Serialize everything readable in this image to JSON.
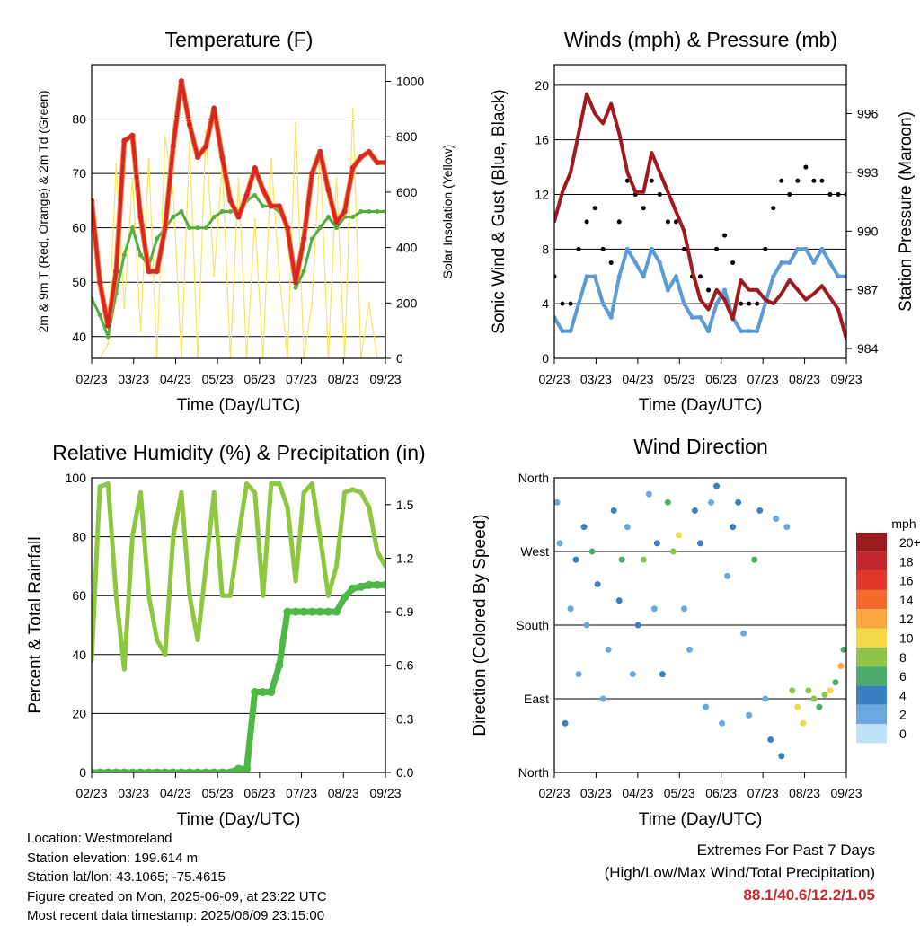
{
  "x_ticks": [
    "02/23",
    "03/23",
    "04/23",
    "05/23",
    "06/23",
    "07/23",
    "08/23",
    "09/23"
  ],
  "footer": {
    "location": "Location: Westmoreland",
    "elevation": "Station elevation: 199.614 m",
    "latlon": "Station lat/lon: 43.1065; -75.4615",
    "created": "Figure created on Mon, 2025-06-09, at 23:22 UTC",
    "recent": "Most recent data timestamp: 2025/06/09 23:15:00"
  },
  "extremes": {
    "title": "Extremes For Past 7 Days",
    "subtitle": "(High/Low/Max Wind/Total Precipitation)",
    "values": "88.1/40.6/12.2/1.05"
  },
  "colors": {
    "temp_red": "#d62728",
    "temp_orange": "#f5862b",
    "dewpoint_green": "#55ad3f",
    "solar_yellow": "#f9e35f",
    "wind_blue": "#5b9bd5",
    "gust_black": "#000000",
    "pressure_maroon": "#9e1a1e",
    "rh_lightgreen": "#8dc63f",
    "precip_green": "#4db843"
  },
  "chart_data": [
    {
      "id": "temperature",
      "type": "line",
      "title": "Temperature (F)",
      "xlabel": "Time (Day/UTC)",
      "ylabel": "2m & 9m T (Red, Orange) & 2m Td (Green)",
      "ylabel_right": "Solar Insolation (Yellow)",
      "ylim": [
        36,
        90
      ],
      "ylim_right": [
        0,
        1060
      ],
      "yticks": [
        40,
        50,
        60,
        70,
        80
      ],
      "yticks_right": [
        0,
        200,
        400,
        600,
        800,
        1000
      ],
      "x": [
        0,
        3,
        6,
        9,
        12,
        15,
        18,
        21,
        24,
        27,
        30,
        33,
        36,
        39,
        42,
        45,
        48,
        51,
        54,
        57,
        60,
        63,
        66,
        69,
        72,
        75,
        78,
        81,
        84,
        87,
        90,
        93,
        96,
        99,
        102,
        105,
        108
      ],
      "series": [
        {
          "name": "2m T",
          "values": [
            65,
            50,
            42,
            52,
            76,
            77,
            62,
            52,
            52,
            60,
            75,
            87,
            79,
            73,
            75,
            82,
            73,
            65,
            62,
            66,
            71,
            67,
            64,
            64,
            60,
            50,
            58,
            70,
            74,
            67,
            61,
            63,
            71,
            73,
            74,
            72,
            72
          ]
        },
        {
          "name": "2m Td",
          "values": [
            47,
            44,
            40,
            48,
            55,
            60,
            55,
            53,
            58,
            60,
            62,
            63,
            60,
            60,
            60,
            62,
            63,
            63,
            63,
            65,
            66,
            64,
            64,
            63,
            60,
            49,
            52,
            58,
            60,
            62,
            60,
            62,
            62,
            63,
            63,
            63,
            63
          ]
        },
        {
          "name": "Solar Insolation",
          "values": [
            0,
            0,
            50,
            700,
            180,
            650,
            100,
            720,
            0,
            800,
            600,
            0,
            780,
            0,
            820,
            300,
            700,
            0,
            650,
            0,
            500,
            0,
            720,
            300,
            0,
            850,
            0,
            200,
            750,
            0,
            650,
            0,
            900,
            0,
            200,
            0,
            0
          ]
        }
      ]
    },
    {
      "id": "winds",
      "type": "line",
      "title": "Winds (mph) & Pressure (mb)",
      "xlabel": "Time (Day/UTC)",
      "ylabel": "Sonic Wind & Gust (Blue, Black)",
      "ylabel_right": "Station Pressure (Maroon)",
      "ylim": [
        0,
        21.5
      ],
      "ylim_right": [
        983.5,
        998.5
      ],
      "yticks": [
        0,
        4,
        8,
        12,
        16,
        20
      ],
      "yticks_right": [
        984,
        987,
        990,
        993,
        996
      ],
      "x": [
        0,
        3,
        6,
        9,
        12,
        15,
        18,
        21,
        24,
        27,
        30,
        33,
        36,
        39,
        42,
        45,
        48,
        51,
        54,
        57,
        60,
        63,
        66,
        69,
        72,
        75,
        78,
        81,
        84,
        87,
        90,
        93,
        96,
        99,
        102,
        105,
        108
      ],
      "series": [
        {
          "name": "Sonic Wind",
          "values": [
            3,
            2,
            2,
            4,
            6,
            6,
            4,
            3,
            6,
            8,
            7,
            6,
            8,
            7,
            5,
            6,
            4,
            3,
            3,
            2,
            4,
            5,
            3,
            2,
            2,
            2,
            4,
            6,
            7,
            7,
            8,
            8,
            7,
            8,
            7,
            6,
            6
          ]
        },
        {
          "name": "Gust",
          "values": [
            6,
            4,
            4,
            8,
            10,
            11,
            8,
            7,
            10,
            13,
            12,
            11,
            13,
            12,
            10,
            10,
            8,
            6,
            6,
            5,
            8,
            9,
            7,
            4,
            4,
            4,
            8,
            11,
            13,
            12,
            13,
            14,
            13,
            13,
            12,
            12,
            12
          ]
        },
        {
          "name": "Station Pressure",
          "values": [
            990.5,
            992,
            993,
            995,
            997,
            996,
            995.5,
            996.5,
            995,
            993,
            992,
            992,
            994,
            993,
            992,
            991,
            990,
            988,
            986.5,
            986,
            987,
            986.5,
            985.5,
            987.5,
            987,
            987,
            986.5,
            986.3,
            986.8,
            987.5,
            987.0,
            986.5,
            986.8,
            987.2,
            986.6,
            986.0,
            984.5
          ]
        }
      ]
    },
    {
      "id": "humidity",
      "type": "line",
      "title": "Relative Humidity (%) & Precipitation (in)",
      "xlabel": "Time (Day/UTC)",
      "ylabel": "Percent & Total Rainfall",
      "ylim": [
        0,
        100
      ],
      "ylim_right": [
        0,
        1.65
      ],
      "yticks": [
        0,
        20,
        40,
        60,
        80,
        100
      ],
      "yticks_right": [
        0.0,
        0.3,
        0.6,
        0.9,
        1.2,
        1.5
      ],
      "x": [
        0,
        3,
        6,
        9,
        12,
        15,
        18,
        21,
        24,
        27,
        30,
        33,
        36,
        39,
        42,
        45,
        48,
        51,
        54,
        57,
        60,
        63,
        66,
        69,
        72,
        75,
        78,
        81,
        84,
        87,
        90,
        93,
        96,
        99,
        102,
        105,
        108
      ],
      "series": [
        {
          "name": "Relative Humidity",
          "values": [
            38,
            97,
            98,
            60,
            35,
            80,
            95,
            60,
            45,
            40,
            80,
            95,
            60,
            45,
            70,
            95,
            60,
            60,
            80,
            98,
            95,
            60,
            98,
            98,
            90,
            65,
            95,
            98,
            80,
            60,
            70,
            95,
            96,
            95,
            90,
            75,
            70
          ]
        },
        {
          "name": "Total Precipitation",
          "values": [
            0,
            0,
            0,
            0,
            0,
            0,
            0,
            0,
            0,
            0,
            0,
            0,
            0,
            0,
            0,
            0,
            0,
            0,
            0.02,
            0.02,
            0.45,
            0.45,
            0.45,
            0.6,
            0.9,
            0.9,
            0.9,
            0.9,
            0.9,
            0.9,
            0.9,
            0.98,
            1.03,
            1.04,
            1.05,
            1.05,
            1.05
          ]
        }
      ]
    },
    {
      "id": "wind_direction",
      "type": "scatter",
      "title": "Wind Direction",
      "xlabel": "Time (Day/UTC)",
      "ylabel": "Direction (Colored By Speed)",
      "ylim": [
        0,
        360
      ],
      "yticks": [
        0,
        90,
        180,
        270,
        360
      ],
      "yticklabels": [
        "North",
        "East",
        "South",
        "West",
        "North"
      ],
      "legend_title": "mph",
      "legend_labels": [
        "20+",
        "18",
        "16",
        "14",
        "12",
        "10",
        "8",
        "6",
        "4",
        "2",
        "0"
      ],
      "legend_colors": [
        "#9b1c1f",
        "#c1272d",
        "#e0362b",
        "#f26b2c",
        "#f9a640",
        "#f2d84a",
        "#8ec54a",
        "#4dac6b",
        "#3b7fc2",
        "#6ba8de",
        "#bfe1f6"
      ],
      "x": [
        1,
        2,
        4,
        6,
        8,
        9,
        11,
        12,
        14,
        16,
        18,
        20,
        22,
        24,
        25,
        27,
        29,
        31,
        33,
        35,
        37,
        38,
        40,
        42,
        44,
        46,
        48,
        50,
        52,
        54,
        56,
        58,
        60,
        62,
        64,
        66,
        68,
        70,
        72,
        74,
        76,
        78,
        80,
        82,
        84,
        86,
        88,
        90,
        92,
        94,
        96,
        98,
        100,
        102,
        104,
        106,
        107
      ],
      "y": [
        330,
        280,
        60,
        200,
        260,
        120,
        300,
        180,
        270,
        230,
        90,
        150,
        320,
        210,
        260,
        300,
        120,
        180,
        260,
        340,
        200,
        280,
        120,
        330,
        270,
        290,
        200,
        150,
        320,
        280,
        80,
        330,
        350,
        60,
        240,
        300,
        330,
        170,
        70,
        260,
        320,
        90,
        40,
        310,
        20,
        300,
        100,
        80,
        60,
        100,
        90,
        80,
        95,
        100,
        110,
        130,
        150
      ],
      "speeds": [
        2,
        1,
        3,
        1,
        4,
        2,
        3,
        1,
        6,
        4,
        1,
        2,
        3,
        4,
        5,
        2,
        1,
        3,
        7,
        2,
        1,
        4,
        3,
        5,
        8,
        10,
        2,
        1,
        3,
        4,
        2,
        1,
        3,
        2,
        1,
        4,
        3,
        2,
        1,
        5,
        3,
        2,
        4,
        1,
        3,
        2,
        8,
        9,
        10,
        7,
        8,
        6,
        7,
        9,
        5,
        11,
        6
      ]
    }
  ]
}
